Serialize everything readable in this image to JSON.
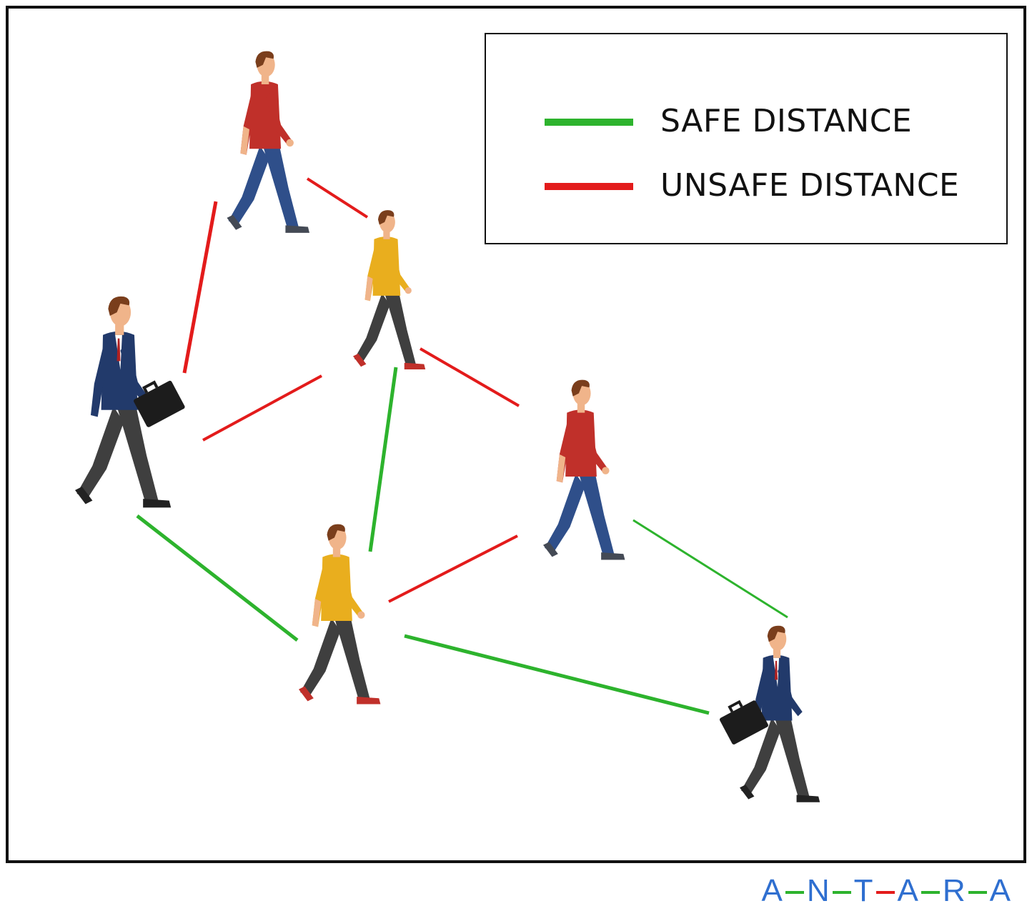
{
  "legend": {
    "items": [
      {
        "label": "SAFE DISTANCE",
        "color": "#2db32d"
      },
      {
        "label": "UNSAFE DISTANCE",
        "color": "#e31b1b"
      }
    ]
  },
  "brand": {
    "letters": [
      "A",
      "N",
      "T",
      "A",
      "R",
      "A"
    ],
    "connector_colors": [
      "#2db32d",
      "#2db32d",
      "#e31b1b",
      "#2db32d",
      "#2db32d"
    ],
    "letter_color": "#2f6fd0"
  },
  "colors": {
    "safe": "#2db32d",
    "unsafe": "#e31b1b",
    "red_shirt": "#c0302a",
    "yellow_shirt": "#e9ae1e",
    "blue_suit": "#223a6b",
    "jeans": "#2f4f8a",
    "dark_pants": "#3f3f3f",
    "skin": "#f0b48a",
    "hair": "#7a3e1c"
  }
}
